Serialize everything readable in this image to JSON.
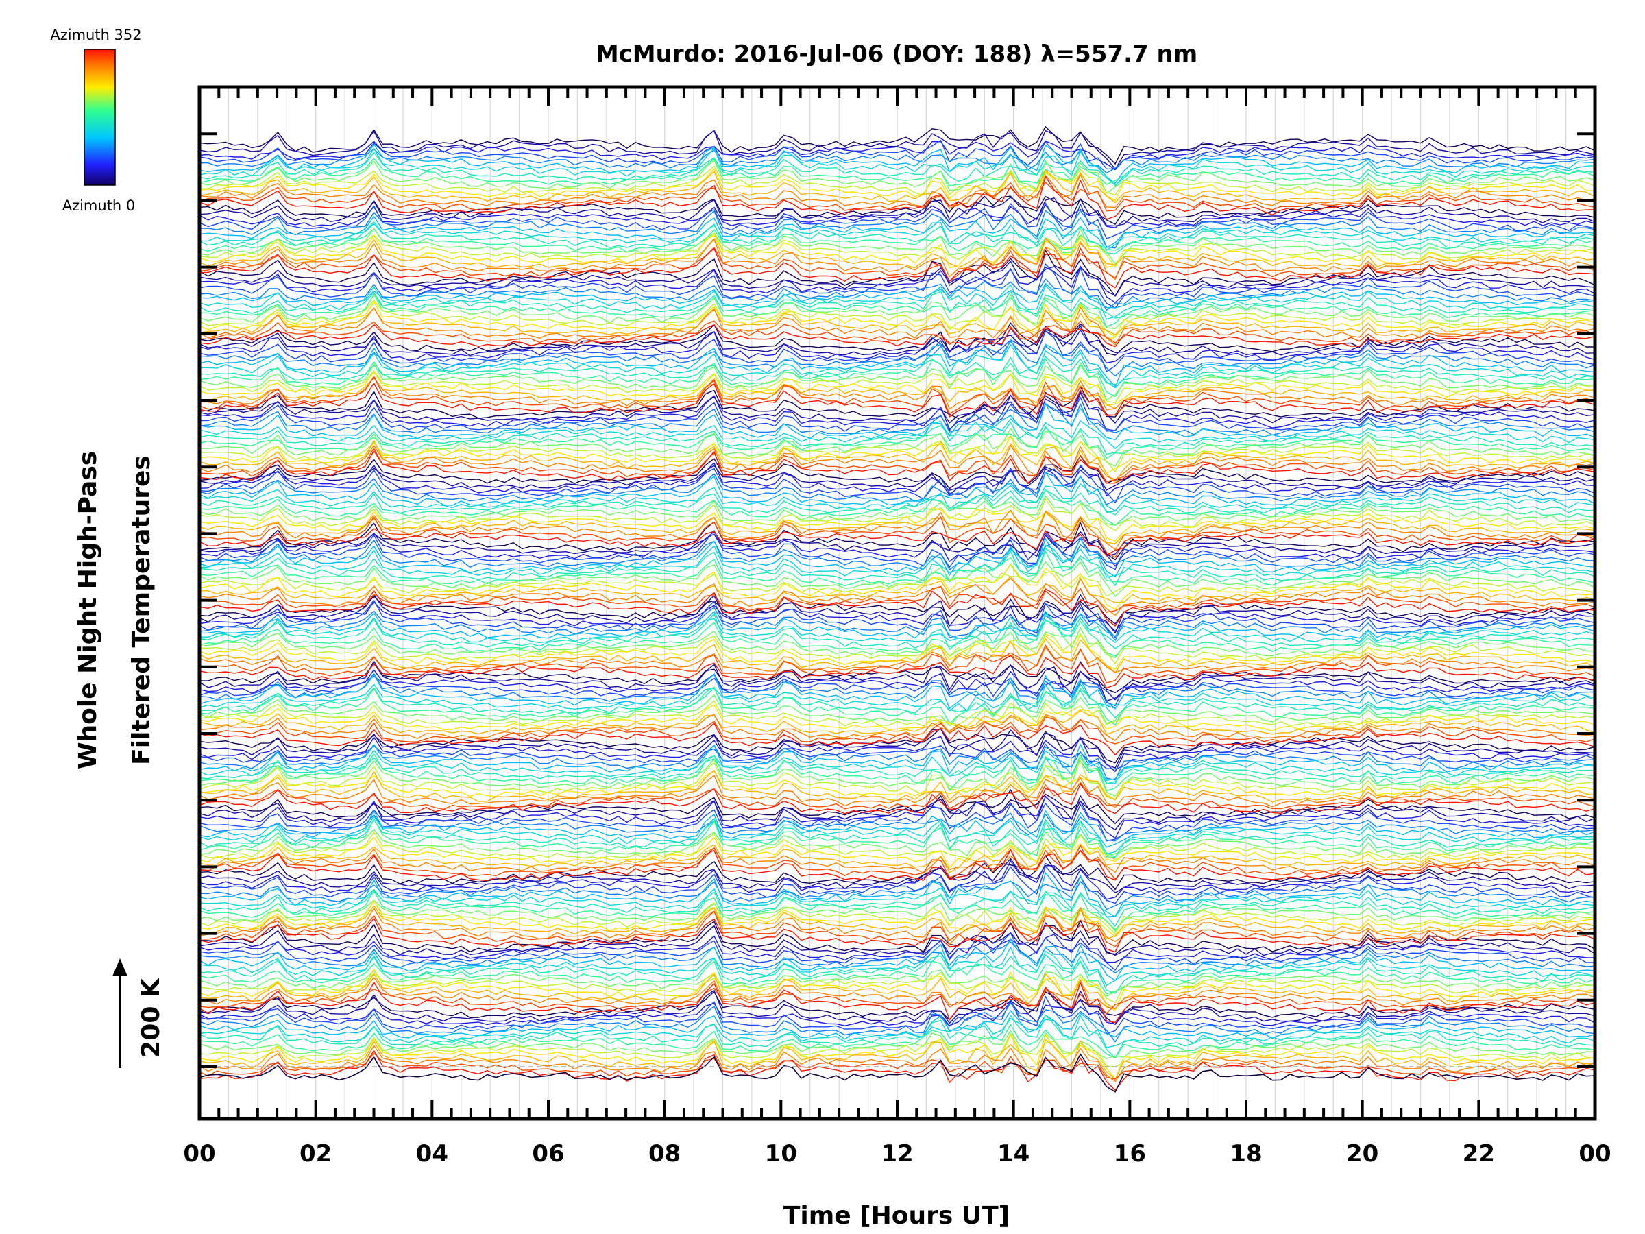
{
  "chart_data": {
    "type": "line",
    "title": "McMurdo: 2016-Jul-06 (DOY: 188) λ=557.7 nm",
    "xlabel": "Time [Hours UT]",
    "ylabel_line1": "Whole Night High-Pass",
    "ylabel_line2": "Filtered Temperatures",
    "scale_label": "200 K",
    "x_ticks": [
      "00",
      "02",
      "04",
      "06",
      "08",
      "10",
      "12",
      "14",
      "16",
      "18",
      "20",
      "22",
      "00"
    ],
    "xlim": [
      0,
      24
    ],
    "grid": true,
    "legend": "colorbar top-left",
    "colorbar": {
      "top_label": "Azimuth 352",
      "bottom_label": "Azimuth 0",
      "colormap": "rainbow (blue to red)",
      "azimuth_range": [
        0,
        352
      ]
    },
    "series_groups": 14,
    "azimuths_per_group": 16,
    "sampling_interval_hours": 0.15,
    "plot_style": "stacked offset traces colored by azimuth",
    "colors": {
      "background": "#ffffff",
      "axes": "#000000",
      "grid": "#d9d9d9",
      "colormap_stops": [
        "#120060",
        "#2020ff",
        "#00c8ff",
        "#30ff90",
        "#ffee00",
        "#ff7a00",
        "#ff1500"
      ]
    }
  }
}
